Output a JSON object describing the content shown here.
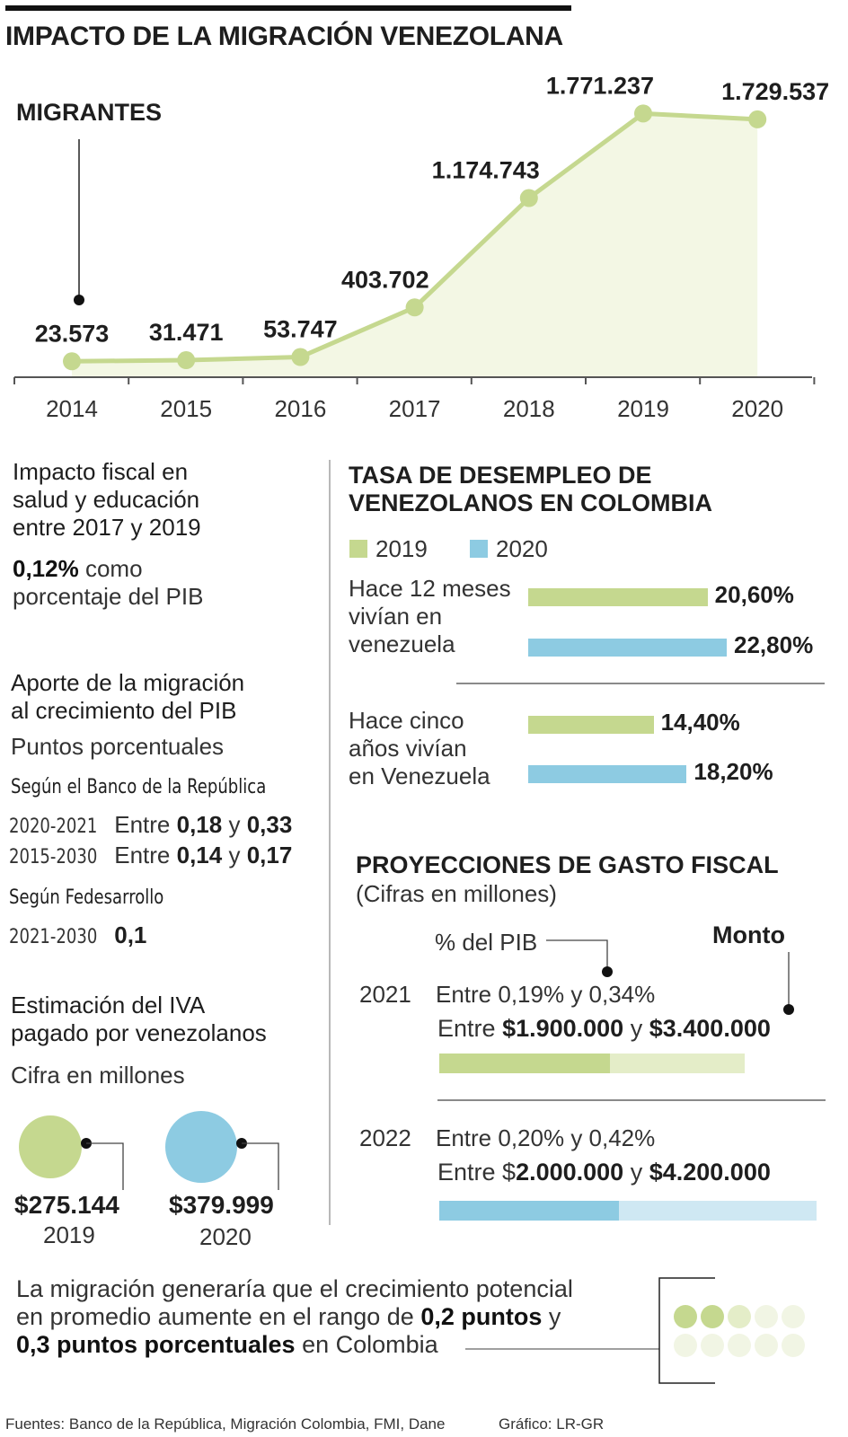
{
  "title": "IMPACTO DE LA MIGRACIÓN VENEZOLANA",
  "colors": {
    "green": "#c5d88f",
    "green_light": "#e4edc8",
    "area": "#f3f7e4",
    "blue": "#8dcbe2",
    "blue_light": "#cfe8f3",
    "dot": "#111111"
  },
  "chart_data": {
    "type": "area",
    "title": "MIGRANTES",
    "x": [
      "2014",
      "2015",
      "2016",
      "2017",
      "2018",
      "2019",
      "2020"
    ],
    "values": [
      23573,
      31471,
      53747,
      403702,
      1174743,
      1771237,
      1729537
    ],
    "labels": [
      "23.573",
      "31.471",
      "53.747",
      "403.702",
      "1.174.743",
      "1.771.237",
      "1.729.537"
    ],
    "ylim": [
      0,
      1900000
    ]
  },
  "fiscal": {
    "heading_lines": [
      "Impacto fiscal en",
      "salud y educación",
      "entre 2017 y 2019"
    ],
    "value": "0,12%",
    "value_suffix": "como",
    "value_line2": "porcentaje del PIB"
  },
  "aporte": {
    "heading_lines": [
      "Aporte de la migración",
      "al crecimiento del PIB"
    ],
    "sub": "Puntos porcentuales",
    "source1": "Según el Banco de la República",
    "rows1": [
      {
        "period": "2020-2021",
        "pre": "Entre",
        "a": "0,18",
        "mid": "y",
        "b": "0,33"
      },
      {
        "period": "2015-2030",
        "pre": "Entre",
        "a": "0,14",
        "mid": "y",
        "b": "0,17"
      }
    ],
    "source2": "Según Fedesarrollo",
    "row2": {
      "period": "2021-2030",
      "value": "0,1"
    }
  },
  "iva": {
    "heading_lines": [
      "Estimación del IVA",
      "pagado por venezolanos"
    ],
    "sub": "Cifra en millones",
    "items": [
      {
        "value": "$275.144",
        "year": "2019",
        "color": "#c5d88f"
      },
      {
        "value": "$379.999",
        "year": "2020",
        "color": "#8dcbe2"
      }
    ]
  },
  "desempleo": {
    "heading_lines": [
      "TASA DE DESEMPLEO DE",
      "VENEZOLANOS EN COLOMBIA"
    ],
    "legend": [
      "2019",
      "2020"
    ],
    "groups": [
      {
        "label_lines": [
          "Hace 12 meses",
          "vivían en",
          "venezuela"
        ],
        "v2019": 20.6,
        "l2019": "20,60%",
        "v2020": 22.8,
        "l2020": "22,80%"
      },
      {
        "label_lines": [
          "Hace cinco",
          "años vivían",
          "en Venezuela"
        ],
        "v2019": 14.4,
        "l2019": "14,40%",
        "v2020": 18.2,
        "l2020": "18,20%"
      }
    ]
  },
  "proyecciones": {
    "heading": "PROYECCIONES DE GASTO FISCAL",
    "sub": "(Cifras en millones)",
    "pib_label": "% del PIB",
    "monto_label": "Monto",
    "rows": [
      {
        "year": "2021",
        "pct": "Entre 0,19% y 0,34%",
        "pre": "Entre",
        "a": "$1.900.000",
        "mid": "y",
        "b": "$3.400.000",
        "low": 1900000,
        "high": 3400000
      },
      {
        "year": "2022",
        "pct": "Entre 0,20% y 0,42%",
        "pre": "Entre $",
        "a": "2.000.000",
        "mid": "y",
        "b": "$4.200.000",
        "low": 2000000,
        "high": 4200000
      }
    ]
  },
  "conclusion": {
    "line1": "La migración generaría que el crecimiento potencial",
    "line2_pre": "en promedio aumente en el rango de",
    "line2_bold": "0,2 puntos",
    "line2_post": "y",
    "line3_bold": "0,3 puntos porcentuales",
    "line3_post": "en Colombia"
  },
  "footer": {
    "sources": "Fuentes: Banco de la República, Migración Colombia, FMI, Dane",
    "credit": "Gráfico: LR-GR"
  }
}
